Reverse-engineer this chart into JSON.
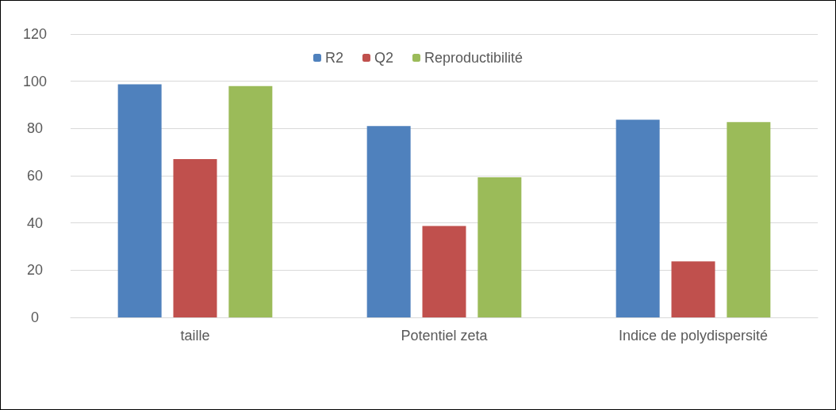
{
  "chart_data": {
    "type": "bar",
    "categories": [
      "taille",
      "Potentiel zeta",
      "Indice de polydispersité"
    ],
    "series": [
      {
        "name": "R2",
        "color": "#4f81bd",
        "values": [
          98.7,
          81,
          83.7
        ]
      },
      {
        "name": "Q2",
        "color": "#c0504d",
        "values": [
          67,
          38.7,
          23.7
        ]
      },
      {
        "name": "Reproductibilité",
        "color": "#9bbb59",
        "values": [
          98,
          59.3,
          82.7
        ]
      }
    ],
    "ylim": [
      0,
      120
    ],
    "yticks": [
      0,
      20,
      40,
      60,
      80,
      100,
      120
    ],
    "grid": "y",
    "legend": "top"
  }
}
